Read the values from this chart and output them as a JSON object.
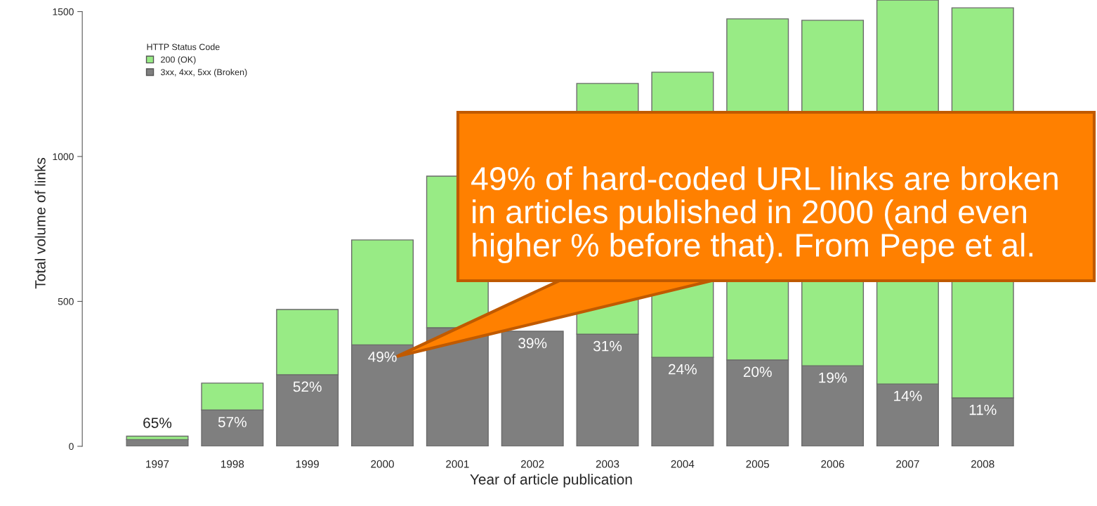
{
  "chart_data": {
    "type": "bar",
    "stacked": true,
    "categories": [
      "1997",
      "1998",
      "1999",
      "2000",
      "2001",
      "2002",
      "2003",
      "2004",
      "2005",
      "2006",
      "2007",
      "2008"
    ],
    "series": [
      {
        "name": "3xx, 4xx, 5xx (Broken)",
        "color": "#7f7f7f",
        "values": [
          23,
          125,
          247,
          350,
          409,
          397,
          387,
          307,
          298,
          278,
          215,
          167
        ]
      },
      {
        "name": "200 (OK)",
        "color": "#98eb85",
        "values": [
          12,
          93,
          225,
          362,
          523,
          null,
          865,
          984,
          1177,
          1192,
          1325,
          1346
        ]
      }
    ],
    "legend_title": "HTTP Status Code",
    "legend": "top left",
    "xlabel": "Year of article publication",
    "ylabel": "Total volume of links",
    "ylim": [
      0,
      1540
    ],
    "yticks": [
      0,
      500,
      1000,
      1500
    ],
    "grid": false,
    "annotations": [
      {
        "text": "65%",
        "x": "1997",
        "y": 35
      },
      {
        "text": "57%",
        "x": "1998",
        "y": 125
      },
      {
        "text": "52%",
        "x": "1999",
        "y": 247
      },
      {
        "text": "49%",
        "x": "2000",
        "y": 350
      },
      {
        "text": "39%",
        "x": "2002",
        "y": 397
      },
      {
        "text": "31%",
        "x": "2003",
        "y": 387
      },
      {
        "text": "24%",
        "x": "2004",
        "y": 307
      },
      {
        "text": "20%",
        "x": "2005",
        "y": 298
      },
      {
        "text": "19%",
        "x": "2006",
        "y": 278
      },
      {
        "text": "14%",
        "x": "2007",
        "y": 215
      },
      {
        "text": "11%",
        "x": "2008",
        "y": 167
      },
      "49% of hard-coded URL links are broken\nin articles published in 2000 (and even\nhigher % before that). From Pepe et al."
    ]
  }
}
